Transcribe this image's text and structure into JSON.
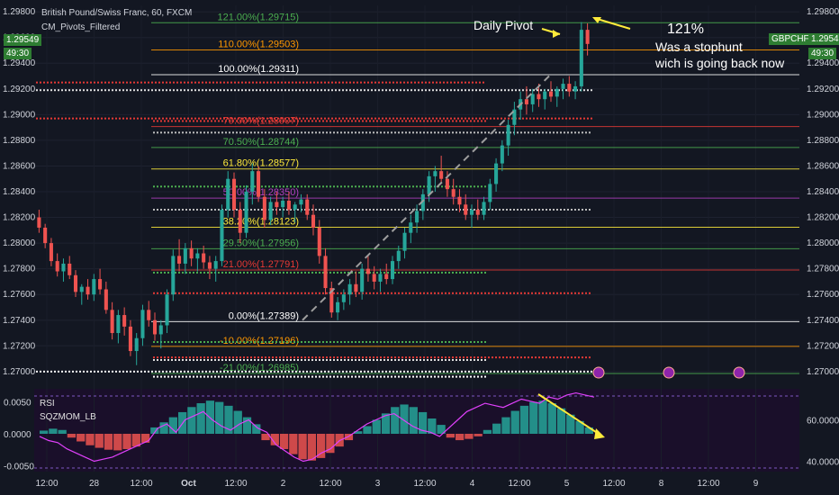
{
  "chart_data": {
    "type": "candlestick",
    "header": {
      "symbol": "British Pound/Swiss Franc, 60, FXCM",
      "indicator": "CM_Pivots_Filtered",
      "last_price": "1.29549",
      "countdown": "49:30",
      "ticker": "GBPCHF"
    },
    "price_axis": {
      "ylim": [
        1.2695,
        1.2985
      ],
      "ticks": [
        "1.29800",
        "1.29600",
        "1.29400",
        "1.29200",
        "1.29000",
        "1.28800",
        "1.28600",
        "1.28400",
        "1.28200",
        "1.28000",
        "1.27800",
        "1.27600",
        "1.27400",
        "1.27200",
        "1.27000"
      ]
    },
    "time_axis": {
      "labels": [
        "12:00",
        "28",
        "12:00",
        "Oct",
        "12:00",
        "2",
        "12:00",
        "3",
        "12:00",
        "4",
        "12:00",
        "5",
        "12:00",
        "8",
        "12:00",
        "9"
      ]
    },
    "fib_levels": [
      {
        "label": "121.00%(1.29715)",
        "price": 1.29715,
        "color": "#4caf50"
      },
      {
        "label": "110.00%(1.29503)",
        "price": 1.29503,
        "color": "#ff9800"
      },
      {
        "label": "100.00%(1.29311)",
        "price": 1.29311,
        "color": "#ffffff"
      },
      {
        "label": "79.00%(1.28907)",
        "price": 1.28907,
        "color": "#e53935"
      },
      {
        "label": "70.50%(1.28744)",
        "price": 1.28744,
        "color": "#4caf50"
      },
      {
        "label": "61.80%(1.28577)",
        "price": 1.28577,
        "color": "#ffeb3b"
      },
      {
        "label": "50.00%(1.28350)",
        "price": 1.2835,
        "color": "#b040c0"
      },
      {
        "label": "38.20%(1.28123)",
        "price": 1.28123,
        "color": "#ffeb3b"
      },
      {
        "label": "29.50%(1.27956)",
        "price": 1.27956,
        "color": "#4caf50"
      },
      {
        "label": "21.00%(1.27791)",
        "price": 1.27791,
        "color": "#e53935"
      },
      {
        "label": "0.00%(1.27389)",
        "price": 1.27389,
        "color": "#ffffff"
      },
      {
        "label": "-10.00%(1.27196)",
        "price": 1.27196,
        "color": "#ff9800"
      },
      {
        "label": "-21.00%(1.26985)",
        "price": 1.26985,
        "color": "#4caf50"
      }
    ],
    "pivot_dots": [
      {
        "price": 1.2919,
        "color": "#e0e0e0"
      },
      {
        "price": 1.2925,
        "color": "#e53935"
      },
      {
        "price": 1.2897,
        "color": "#e53935"
      },
      {
        "price": 1.2895,
        "color": "#e53935"
      },
      {
        "price": 1.2886,
        "color": "#bdbdbd"
      },
      {
        "price": 1.2844,
        "color": "#4caf50"
      },
      {
        "price": 1.2826,
        "color": "#bdbdbd"
      },
      {
        "price": 1.2777,
        "color": "#4caf50"
      },
      {
        "price": 1.2761,
        "color": "#e53935"
      },
      {
        "price": 1.2723,
        "color": "#4caf50"
      },
      {
        "price": 1.2711,
        "color": "#e53935"
      },
      {
        "price": 1.2709,
        "color": "#e0e0e0"
      },
      {
        "price": 1.27,
        "color": "#ffffff"
      },
      {
        "price": 1.2696,
        "color": "#ffffff"
      }
    ],
    "candles": [
      [
        1.282,
        1.2826,
        1.2808,
        1.2812
      ],
      [
        1.2812,
        1.2815,
        1.2796,
        1.28
      ],
      [
        1.28,
        1.2804,
        1.2782,
        1.2786
      ],
      [
        1.2786,
        1.2792,
        1.2774,
        1.2778
      ],
      [
        1.2778,
        1.2788,
        1.277,
        1.2784
      ],
      [
        1.2784,
        1.279,
        1.2772,
        1.2775
      ],
      [
        1.2775,
        1.2779,
        1.2758,
        1.2762
      ],
      [
        1.2762,
        1.2768,
        1.2752,
        1.2766
      ],
      [
        1.2766,
        1.2772,
        1.2756,
        1.276
      ],
      [
        1.276,
        1.2776,
        1.2755,
        1.2772
      ],
      [
        1.2772,
        1.278,
        1.276,
        1.2764
      ],
      [
        1.2764,
        1.277,
        1.2745,
        1.2748
      ],
      [
        1.2748,
        1.2754,
        1.2725,
        1.273
      ],
      [
        1.273,
        1.2748,
        1.2722,
        1.2744
      ],
      [
        1.2744,
        1.275,
        1.2728,
        1.2735
      ],
      [
        1.2735,
        1.274,
        1.2712,
        1.2716
      ],
      [
        1.2716,
        1.273,
        1.2705,
        1.2726
      ],
      [
        1.2726,
        1.2752,
        1.272,
        1.2748
      ],
      [
        1.2748,
        1.2755,
        1.2735,
        1.274
      ],
      [
        1.274,
        1.2746,
        1.2724,
        1.2729
      ],
      [
        1.2729,
        1.274,
        1.2718,
        1.2736
      ],
      [
        1.2736,
        1.2764,
        1.273,
        1.276
      ],
      [
        1.276,
        1.2795,
        1.2755,
        1.279
      ],
      [
        1.279,
        1.2803,
        1.2778,
        1.2784
      ],
      [
        1.2784,
        1.28,
        1.2776,
        1.2796
      ],
      [
        1.2796,
        1.2802,
        1.2782,
        1.2788
      ],
      [
        1.2788,
        1.2796,
        1.2778,
        1.2792
      ],
      [
        1.2792,
        1.2798,
        1.278,
        1.2785
      ],
      [
        1.2785,
        1.279,
        1.2772,
        1.278
      ],
      [
        1.278,
        1.279,
        1.277,
        1.2786
      ],
      [
        1.2786,
        1.283,
        1.2782,
        1.2826
      ],
      [
        1.2826,
        1.2856,
        1.282,
        1.285
      ],
      [
        1.285,
        1.2855,
        1.282,
        1.2826
      ],
      [
        1.2826,
        1.2832,
        1.28,
        1.2808
      ],
      [
        1.2808,
        1.2845,
        1.2804,
        1.284
      ],
      [
        1.284,
        1.2862,
        1.283,
        1.2856
      ],
      [
        1.2856,
        1.286,
        1.2832,
        1.2836
      ],
      [
        1.2836,
        1.2842,
        1.2812,
        1.2818
      ],
      [
        1.2818,
        1.2836,
        1.2814,
        1.2832
      ],
      [
        1.2832,
        1.284,
        1.2822,
        1.2828
      ],
      [
        1.2828,
        1.2836,
        1.282,
        1.2833
      ],
      [
        1.2833,
        1.284,
        1.2822,
        1.2826
      ],
      [
        1.2826,
        1.2832,
        1.2816,
        1.283
      ],
      [
        1.283,
        1.2838,
        1.2824,
        1.2834
      ],
      [
        1.2834,
        1.2838,
        1.2818,
        1.2822
      ],
      [
        1.2822,
        1.283,
        1.2806,
        1.2812
      ],
      [
        1.2812,
        1.2818,
        1.2784,
        1.279
      ],
      [
        1.279,
        1.2796,
        1.276,
        1.2765
      ],
      [
        1.2765,
        1.277,
        1.2742,
        1.2746
      ],
      [
        1.2746,
        1.2758,
        1.274,
        1.2754
      ],
      [
        1.2754,
        1.2764,
        1.2748,
        1.276
      ],
      [
        1.276,
        1.2772,
        1.2752,
        1.2768
      ],
      [
        1.2768,
        1.2778,
        1.2758,
        1.2762
      ],
      [
        1.2762,
        1.2784,
        1.2756,
        1.278
      ],
      [
        1.278,
        1.279,
        1.277,
        1.2776
      ],
      [
        1.2776,
        1.2782,
        1.2764,
        1.277
      ],
      [
        1.277,
        1.278,
        1.2762,
        1.2776
      ],
      [
        1.2776,
        1.2784,
        1.2768,
        1.2772
      ],
      [
        1.2772,
        1.279,
        1.2768,
        1.2786
      ],
      [
        1.2786,
        1.2798,
        1.278,
        1.2794
      ],
      [
        1.2794,
        1.2812,
        1.2788,
        1.2808
      ],
      [
        1.2808,
        1.2822,
        1.28,
        1.2816
      ],
      [
        1.2816,
        1.283,
        1.2808,
        1.2825
      ],
      [
        1.2825,
        1.2842,
        1.2818,
        1.2838
      ],
      [
        1.2838,
        1.2856,
        1.2832,
        1.2852
      ],
      [
        1.2852,
        1.286,
        1.284,
        1.2856
      ],
      [
        1.2856,
        1.2868,
        1.2846,
        1.285
      ],
      [
        1.285,
        1.2856,
        1.2836,
        1.2842
      ],
      [
        1.2842,
        1.285,
        1.283,
        1.2836
      ],
      [
        1.2836,
        1.2842,
        1.2824,
        1.283
      ],
      [
        1.283,
        1.2838,
        1.2818,
        1.2822
      ],
      [
        1.2822,
        1.283,
        1.2812,
        1.2826
      ],
      [
        1.2826,
        1.2834,
        1.2818,
        1.2822
      ],
      [
        1.2822,
        1.2836,
        1.2818,
        1.2832
      ],
      [
        1.2832,
        1.285,
        1.2826,
        1.2846
      ],
      [
        1.2846,
        1.2866,
        1.284,
        1.2862
      ],
      [
        1.2862,
        1.288,
        1.2856,
        1.2876
      ],
      [
        1.2876,
        1.2896,
        1.2868,
        1.2892
      ],
      [
        1.2892,
        1.291,
        1.2884,
        1.2904
      ],
      [
        1.2904,
        1.2918,
        1.2896,
        1.2912
      ],
      [
        1.2912,
        1.2922,
        1.29,
        1.2908
      ],
      [
        1.2908,
        1.292,
        1.2902,
        1.2916
      ],
      [
        1.2916,
        1.2924,
        1.2906,
        1.2912
      ],
      [
        1.2912,
        1.292,
        1.2904,
        1.2918
      ],
      [
        1.2918,
        1.2926,
        1.291,
        1.2914
      ],
      [
        1.2914,
        1.2922,
        1.2906,
        1.292
      ],
      [
        1.292,
        1.2928,
        1.2912,
        1.2924
      ],
      [
        1.2924,
        1.293,
        1.2914,
        1.2918
      ],
      [
        1.2918,
        1.2926,
        1.2912,
        1.2922
      ],
      [
        1.2922,
        1.2972,
        1.2918,
        1.2966
      ],
      [
        1.2966,
        1.2971,
        1.2946,
        1.2955
      ]
    ],
    "projection_dashed": [
      [
        1.274,
        1.293
      ]
    ],
    "rsi_panel": {
      "labels": [
        "RSI",
        "SQZMOM_LB"
      ],
      "left_ticks": [
        "0.0050",
        "0.0000",
        "-0.0050"
      ],
      "right_ticks": [
        "60.0000",
        "40.0000"
      ],
      "histogram": [
        0.0005,
        0.0008,
        0.0006,
        -0.0006,
        -0.0012,
        -0.0018,
        -0.0022,
        -0.0025,
        -0.0026,
        -0.0024,
        -0.002,
        -0.0014,
        0.001,
        0.0018,
        0.0026,
        0.0034,
        0.0042,
        0.0048,
        0.0052,
        0.005,
        0.0044,
        0.0036,
        0.0026,
        0.0015,
        -0.001,
        -0.0018,
        -0.0024,
        -0.0032,
        -0.004,
        -0.0042,
        -0.0038,
        -0.003,
        -0.002,
        -0.001,
        0.0004,
        0.0012,
        0.0022,
        0.0032,
        0.0042,
        0.0046,
        0.0042,
        0.0034,
        0.0024,
        0.0014,
        -0.0006,
        -0.001,
        -0.0008,
        -0.0004,
        0.0006,
        0.0016,
        0.0026,
        0.0036,
        0.0044,
        0.005,
        0.0052,
        0.0048,
        0.004,
        0.003,
        0.002,
        0.001
      ],
      "rsi": [
        52,
        50,
        49,
        46,
        44,
        42,
        40,
        41,
        42,
        44,
        46,
        48,
        50,
        56,
        58,
        54,
        60,
        62,
        64,
        60,
        57,
        55,
        58,
        60,
        56,
        54,
        48,
        45,
        42,
        40,
        41,
        44,
        46,
        50,
        52,
        55,
        58,
        60,
        62,
        63,
        60,
        57,
        55,
        54,
        52,
        56,
        60,
        64,
        66,
        68,
        67,
        66,
        68,
        70,
        69,
        68,
        71,
        70,
        72,
        73,
        72,
        71
      ],
      "rsi_ylim": [
        35,
        75
      ]
    },
    "annotations": {
      "daily_pivot": "Daily Pivot",
      "pct": "121%",
      "line1": "Was a stophunt",
      "line2": "wich is going back now"
    },
    "events_count": 3
  }
}
